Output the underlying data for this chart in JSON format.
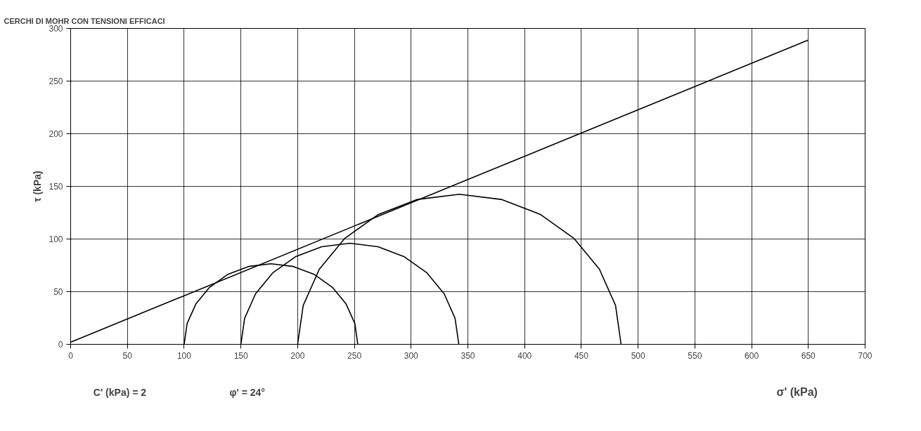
{
  "chart_data": {
    "type": "line",
    "title": "CERCHI DI MOHR CON TENSIONI EFFICACI",
    "xlabel": "σ' (kPa)",
    "ylabel": "τ (kPa)",
    "annotations": [
      "C' (kPa) =  2",
      "φ' = 24°"
    ],
    "xlim": [
      0,
      700
    ],
    "ylim": [
      0,
      300
    ],
    "xticks": [
      0,
      50,
      100,
      150,
      200,
      250,
      300,
      350,
      400,
      450,
      500,
      550,
      600,
      650,
      700
    ],
    "yticks": [
      0,
      50,
      100,
      150,
      200,
      250,
      300
    ],
    "grid": true,
    "marker": "none",
    "line_style": "solid",
    "series": [
      {
        "color": "#000000",
        "x": [
          0,
          650
        ],
        "values": [
          2,
          289
        ]
      },
      {
        "color": "#000000",
        "x": [
          100,
          102.6,
          110.3,
          122.4,
          138.2,
          156.7,
          176.5,
          196.3,
          214.8,
          230.6,
          242.7,
          250.4,
          253
        ],
        "values": [
          0,
          19.8,
          38.3,
          54.1,
          66.3,
          73.9,
          76.5,
          73.9,
          66.3,
          54.1,
          38.3,
          19.8,
          0
        ]
      },
      {
        "color": "#000000",
        "x": [
          150,
          153.3,
          162.9,
          178.1,
          198,
          221.2,
          246,
          270.8,
          294,
          313.9,
          329.1,
          338.7,
          342
        ],
        "values": [
          0,
          24.8,
          48,
          67.9,
          83.1,
          92.7,
          96,
          92.7,
          83.1,
          67.9,
          48,
          24.8,
          0
        ]
      },
      {
        "color": "#000000",
        "x": [
          200,
          204.9,
          219.1,
          241.7,
          271.2,
          305.6,
          342.5,
          379.4,
          413.8,
          443.3,
          465.9,
          480.1,
          485
        ],
        "values": [
          0,
          36.9,
          71.3,
          100.8,
          123.4,
          137.6,
          142.5,
          137.6,
          123.4,
          100.8,
          71.3,
          36.9,
          0
        ]
      }
    ]
  }
}
